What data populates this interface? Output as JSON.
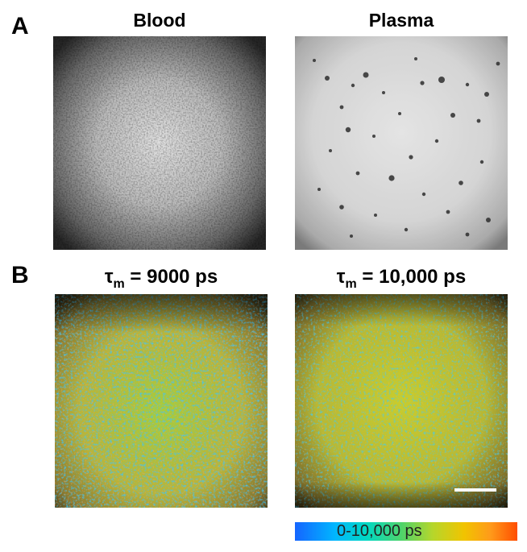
{
  "panels": {
    "a": {
      "letter": "A",
      "left_title": "Blood",
      "right_title": "Plasma"
    },
    "b": {
      "letter": "B",
      "left_title": {
        "symbol": "τ",
        "subscript": "m",
        "value": " = 9000 ps"
      },
      "right_title": {
        "symbol": "τ",
        "subscript": "m",
        "value": " = 10,000 ps"
      }
    }
  },
  "colorbar": {
    "label": "0-10,000 ps",
    "colors": [
      "#1565ff",
      "#00b6ff",
      "#00d8c4",
      "#4fd36a",
      "#b6d62b",
      "#f1c400",
      "#ff9a1a",
      "#ff4d00"
    ]
  }
}
